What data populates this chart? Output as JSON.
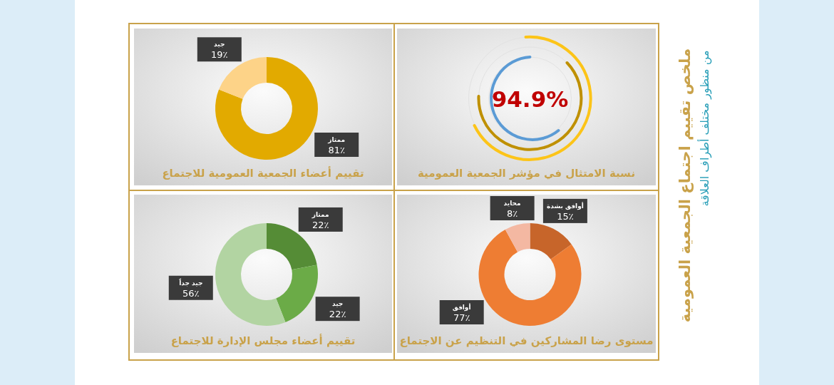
{
  "chart_data": [
    {
      "type": "other",
      "title": "ملخص تقييم اجتماع الجمعية العمومية",
      "subtitle": "من منظور مختلف أطراف العلاقة"
    },
    {
      "type": "other",
      "title": "نسبة الامتثال في مؤشر الجمعية العمومية",
      "annotations": [
        "94.9%"
      ]
    },
    {
      "type": "donut",
      "title": "تقييم أعضاء الجمعية العمومية للاجتماع",
      "categories": [
        "ممتاز",
        "جيد"
      ],
      "values": [
        81,
        19
      ],
      "colors": [
        "#e2aa00",
        "#fdd388"
      ],
      "value_labels": [
        "81٪",
        "19٪"
      ]
    },
    {
      "type": "donut",
      "title": "مستوى رضا المشاركين في التنظيم عن الاجتماع",
      "categories": [
        "أوافق بشدة",
        "أوافق",
        "محايد"
      ],
      "values": [
        15,
        77,
        8
      ],
      "colors": [
        "#c7652a",
        "#ee7d33",
        "#f4b8a2"
      ],
      "value_labels": [
        "15٪",
        "77٪",
        "8٪"
      ]
    },
    {
      "type": "donut",
      "title": "تقييم أعضاء مجلس الإدارة للاجتماع",
      "categories": [
        "ممتاز",
        "جيد",
        "جيد جداً"
      ],
      "values": [
        22,
        22,
        56
      ],
      "colors": [
        "#558c36",
        "#6bab47",
        "#b2d4a2"
      ],
      "value_labels": [
        "22٪",
        "22٪",
        "56٪"
      ]
    }
  ]
}
